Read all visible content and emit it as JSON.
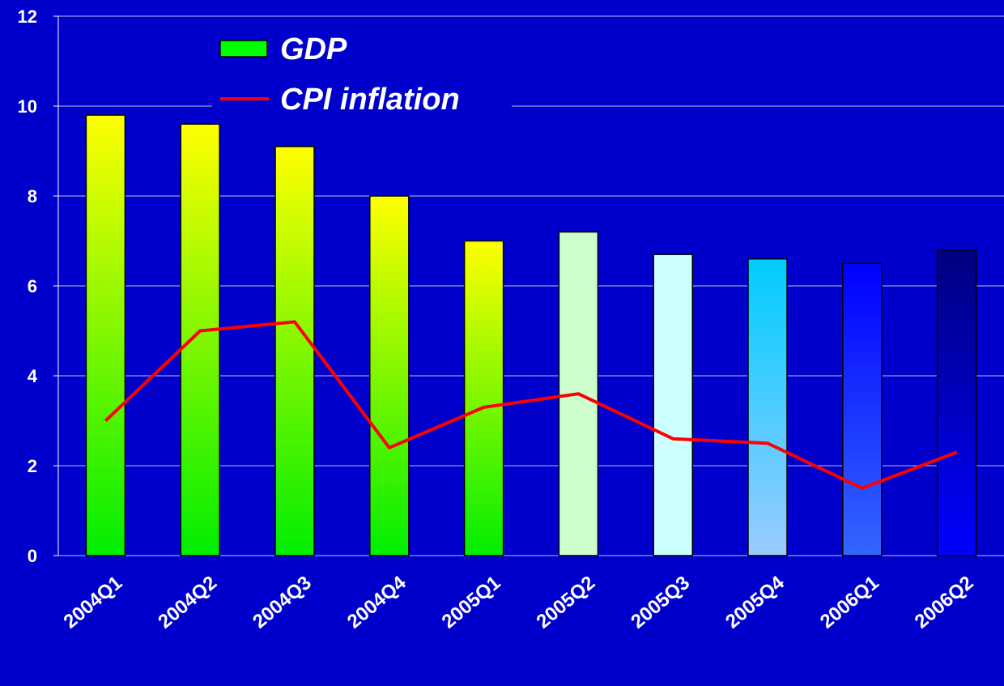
{
  "chart_data": {
    "type": "bar-line",
    "categories": [
      "2004Q1",
      "2004Q2",
      "2004Q3",
      "2004Q4",
      "2005Q1",
      "2005Q2",
      "2005Q3",
      "2005Q4",
      "2006Q1",
      "2006Q2"
    ],
    "series": [
      {
        "name": "GDP",
        "type": "bar",
        "color": "#00ff00",
        "colors": [
          [
            "#ffff00",
            "#00ee00"
          ],
          [
            "#ffff00",
            "#00ee00"
          ],
          [
            "#ffff00",
            "#00ee00"
          ],
          [
            "#ffff00",
            "#00ee00"
          ],
          [
            "#ffff00",
            "#00ee00"
          ],
          [
            "#ccffcc",
            "#ccffcc"
          ],
          [
            "#ccffff",
            "#ccffff"
          ],
          [
            "#00ccff",
            "#99ccff"
          ],
          [
            "#0000ff",
            "#3366ff"
          ],
          [
            "#000080",
            "#0000ff"
          ]
        ],
        "values": [
          9.8,
          9.6,
          9.1,
          8.0,
          7.0,
          7.2,
          6.7,
          6.6,
          6.5,
          6.8
        ]
      },
      {
        "name": "CPI inflation",
        "type": "line",
        "color": "#ff0000",
        "values": [
          3.0,
          5.0,
          5.2,
          2.4,
          3.3,
          3.6,
          2.6,
          2.5,
          1.5,
          2.3
        ]
      }
    ],
    "ylim": [
      0,
      12
    ],
    "yticks": [
      0,
      2,
      4,
      6,
      8,
      10,
      12
    ],
    "grid": true,
    "background": "#0000cc"
  }
}
